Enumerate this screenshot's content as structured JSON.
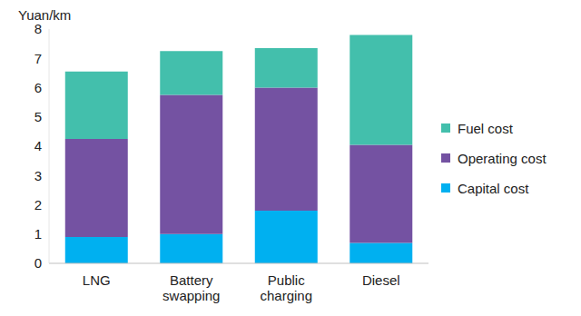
{
  "chart_data": {
    "type": "bar",
    "stacked": true,
    "y_label": "Yuan/km",
    "categories": [
      "LNG",
      "Battery swapping",
      "Public charging",
      "Diesel"
    ],
    "series": [
      {
        "name": "Capital cost",
        "color": "#00b0f0",
        "values": [
          0.9,
          1.0,
          1.8,
          0.7
        ]
      },
      {
        "name": "Operating cost",
        "color": "#7452a2",
        "values": [
          3.35,
          4.75,
          4.2,
          3.35
        ]
      },
      {
        "name": "Fuel cost",
        "color": "#43bfac",
        "values": [
          2.3,
          1.5,
          1.35,
          3.75
        ]
      }
    ],
    "ylim": [
      0,
      8
    ],
    "yticks": [
      0,
      1,
      2,
      3,
      4,
      5,
      6,
      7,
      8
    ],
    "grid": false,
    "legend": "right"
  }
}
